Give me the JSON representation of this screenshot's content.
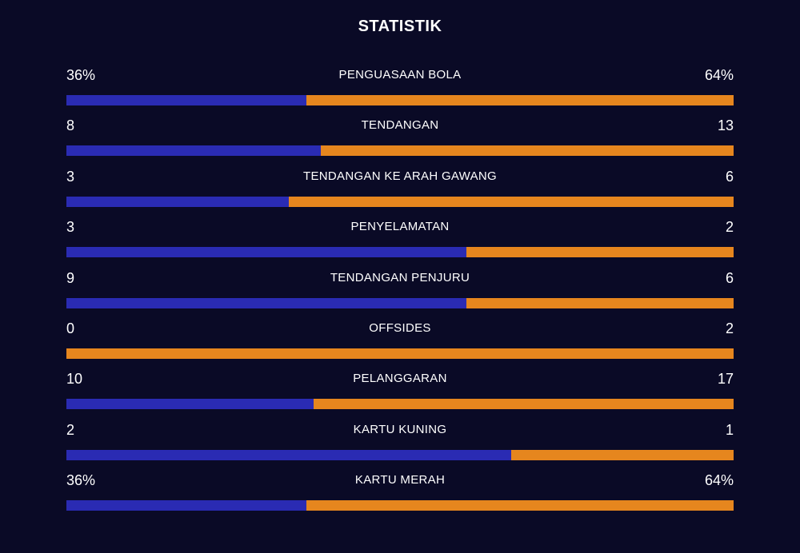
{
  "title": "STATISTIK",
  "colors": {
    "background": "#0a0a26",
    "home": "#2a2bb3",
    "away": "#e6861e",
    "text": "#ffffff"
  },
  "stats": [
    {
      "label": "PENGUASAAN BOLA",
      "home": "36%",
      "away": "64%",
      "home_share": 0.36
    },
    {
      "label": "TENDANGAN",
      "home": "8",
      "away": "13",
      "home_share": 0.381
    },
    {
      "label": "TENDANGAN KE ARAH GAWANG",
      "home": "3",
      "away": "6",
      "home_share": 0.333
    },
    {
      "label": "PENYELAMATAN",
      "home": "3",
      "away": "2",
      "home_share": 0.6
    },
    {
      "label": "TENDANGAN PENJURU",
      "home": "9",
      "away": "6",
      "home_share": 0.6
    },
    {
      "label": "OFFSIDES",
      "home": "0",
      "away": "2",
      "home_share": 0
    },
    {
      "label": "PELANGGARAN",
      "home": "10",
      "away": "17",
      "home_share": 0.37
    },
    {
      "label": "KARTU KUNING",
      "home": "2",
      "away": "1",
      "home_share": 0.667
    },
    {
      "label": "KARTU MERAH",
      "home": "36%",
      "away": "64%",
      "home_share": 0.36
    }
  ]
}
